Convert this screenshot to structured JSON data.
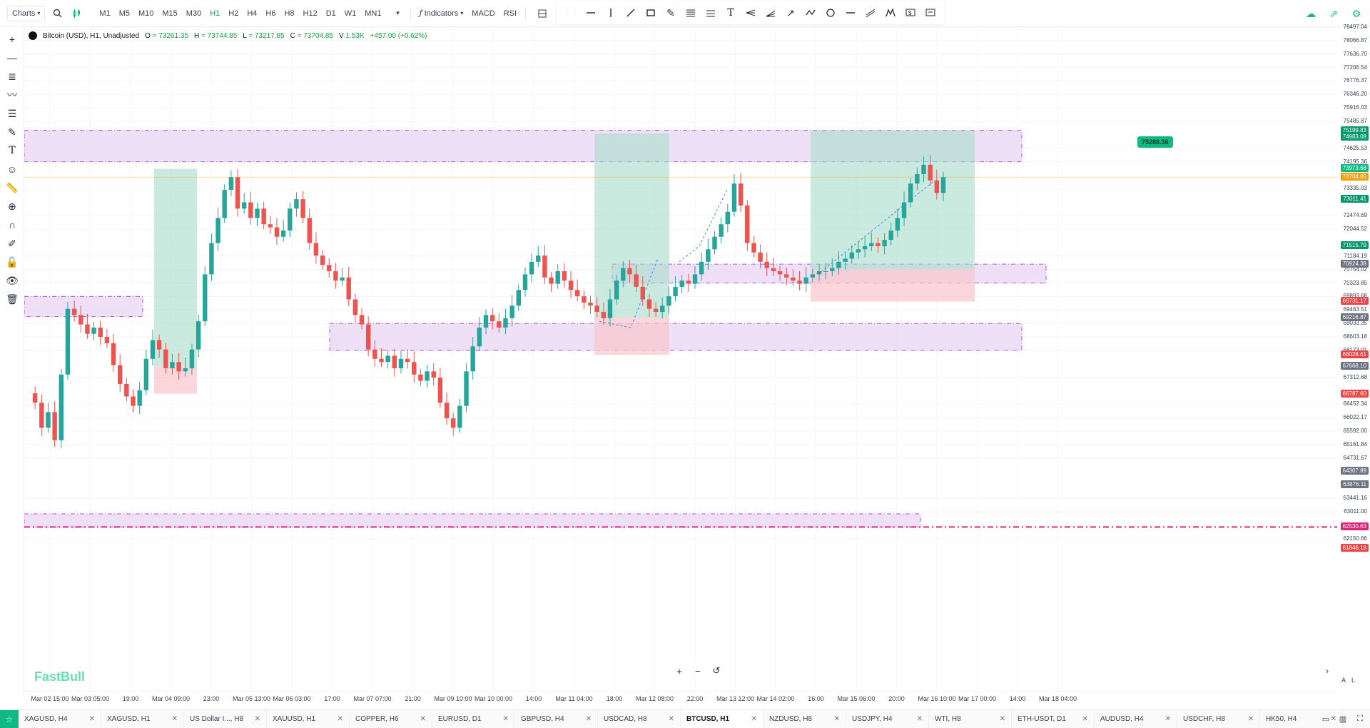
{
  "toolbar": {
    "charts_label": "Charts",
    "timeframes": [
      "M1",
      "M5",
      "M10",
      "M15",
      "M30",
      "H1",
      "H2",
      "H4",
      "H6",
      "H8",
      "H12",
      "D1",
      "W1",
      "MN1"
    ],
    "active_timeframe": "H1",
    "indicators_label": "Indicators",
    "macd_label": "MACD",
    "rsi_label": "RSI"
  },
  "legend": {
    "symbol": "Bitcoin (USD), H1, Unadjusted",
    "o_label": "O",
    "o_value": "= 73261.35",
    "h_label": "H",
    "h_value": "= 73744.85",
    "l_label": "L",
    "l_value": "= 73217.85",
    "c_label": "C",
    "c_value": "= 73704.85",
    "v_label": "V",
    "v_value": "1.53K",
    "change": "+457.00 (+0.62%)"
  },
  "price_axis": {
    "labels": [
      "78497.04",
      "78066.87",
      "77636.70",
      "77206.54",
      "76776.37",
      "76346.20",
      "75916.03",
      "75485.87",
      "74625.53",
      "74195.36",
      "73335.03",
      "72474.69",
      "72044.52",
      "71184.19",
      "70754.02",
      "70323.85",
      "69893.68",
      "69463.51",
      "69033.35",
      "68603.18",
      "68173.01",
      "67312.68",
      "66452.34",
      "66022.17",
      "65592.00",
      "65161.84",
      "64731.67",
      "63441.16",
      "63011.00",
      "62150.66"
    ],
    "badges": [
      {
        "text": "75199.83",
        "color": "#059669"
      },
      {
        "text": "74983.08",
        "color": "#059669"
      },
      {
        "text": "73973.68",
        "color": "#10b981"
      },
      {
        "text": "73704.85",
        "color": "#f59e0b"
      },
      {
        "text": "73011.41",
        "color": "#059669"
      },
      {
        "text": "71515.79",
        "color": "#059669"
      },
      {
        "text": "70924.38",
        "color": "#6b7280"
      },
      {
        "text": "69731.17",
        "color": "#ef4444"
      },
      {
        "text": "69216.87",
        "color": "#6b7280"
      },
      {
        "text": "68028.61",
        "color": "#ef4444"
      },
      {
        "text": "67668.10",
        "color": "#6b7280"
      },
      {
        "text": "66787.60",
        "color": "#ef4444"
      },
      {
        "text": "64307.89",
        "color": "#6b7280"
      },
      {
        "text": "63876.11",
        "color": "#6b7280"
      },
      {
        "text": "62530.63",
        "color": "#db2777"
      },
      {
        "text": "61846.18",
        "color": "#ef4444"
      }
    ],
    "corner_auto": "A",
    "corner_log": "L"
  },
  "target_callout": "75288.36",
  "time_axis": [
    "Mar 02 15:00",
    "Mar 03 05:00",
    "19:00",
    "Mar 04 09:00",
    "23:00",
    "Mar 05 13:00",
    "Mar 06 03:00",
    "17:00",
    "Mar 07 07:00",
    "21:00",
    "Mar 09 10:00",
    "Mar 10 00:00",
    "14:00",
    "Mar 11 04:00",
    "18:00",
    "Mar 12 08:00",
    "22:00",
    "Mar 13 12:00",
    "Mar 14 02:00",
    "16:00",
    "Mar 15 06:00",
    "20:00",
    "Mar 16 10:00",
    "Mar 17 00:00",
    "14:00",
    "Mar 18 04:00"
  ],
  "watermark": "FastBull",
  "tabs": [
    "XAGUSD, H4",
    "XAGUSD, H1",
    "US Dollar I..., H8",
    "XAUUSD, H1",
    "COPPER, H6",
    "EURUSD, D1",
    "GBPUSD, H4",
    "USDCAD, H8",
    "BTCUSD, H1",
    "NZDUSD, H8",
    "USDJPY, H4",
    "WTI, H8",
    "ETH-USDT, D1",
    "AUDUSD, H4",
    "USDCHF, H8",
    "HK50, H4"
  ],
  "active_tab": "BTCUSD, H1",
  "colors": {
    "up": "#26a69a",
    "down": "#ef5350",
    "zone": "#e9d5f5",
    "zone_border": "#a855f7",
    "profit": "#a7dcc9",
    "loss": "#f9c6cc",
    "accent": "#10b981"
  }
}
